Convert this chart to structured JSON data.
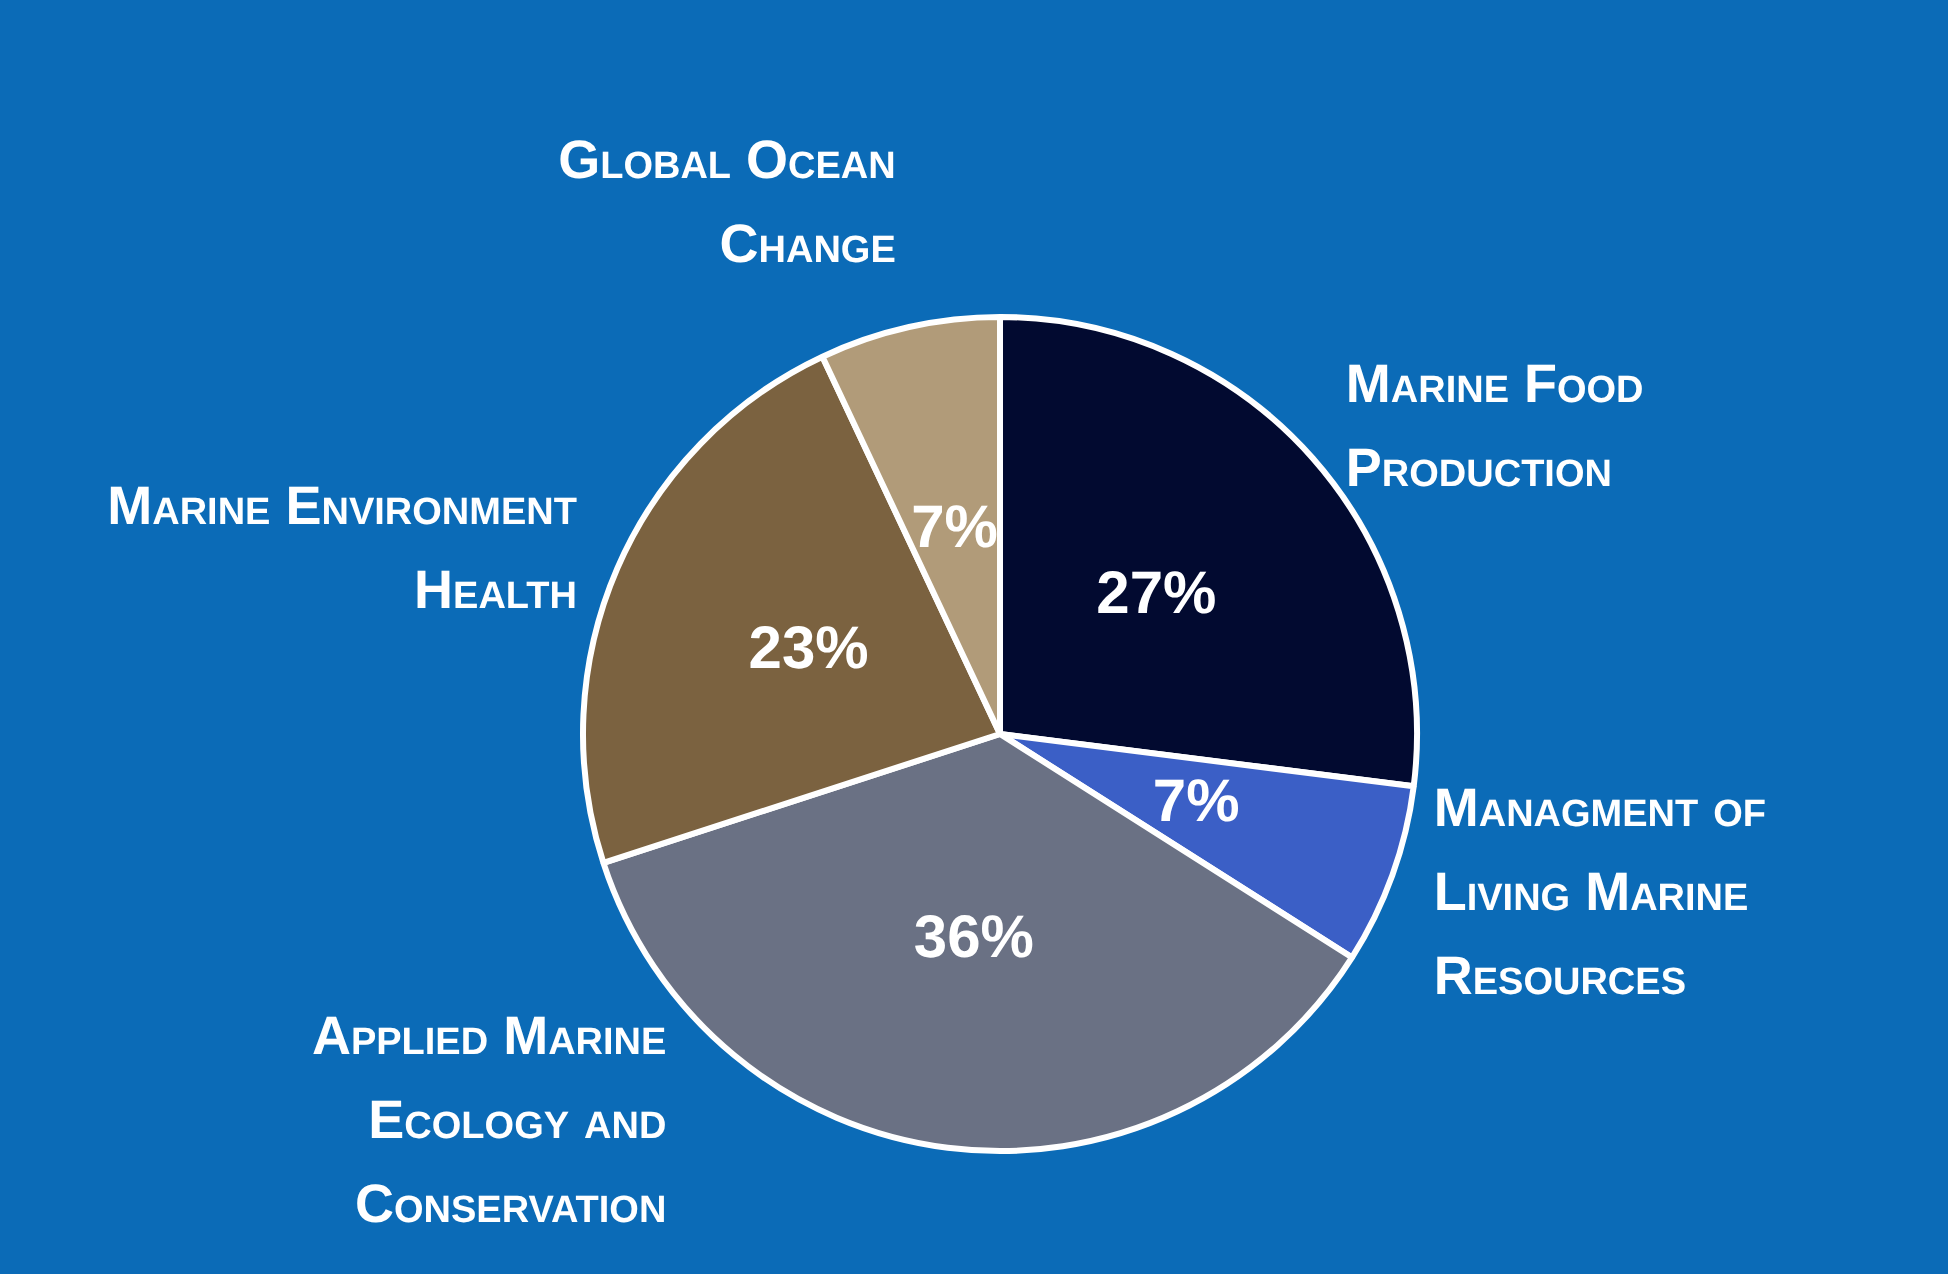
{
  "chart_data": {
    "type": "pie",
    "categories": [
      "Marine Food Production",
      "Managment of Living Marine Resources",
      "Applied Marine Ecology and Conservation",
      "Marine Environment Health",
      "Global Ocean Change"
    ],
    "values": [
      27,
      7,
      36,
      23,
      7
    ],
    "value_labels": [
      "27%",
      "7%",
      "36%",
      "23%",
      "7%"
    ],
    "colors": [
      "#020a30",
      "#3b5fc6",
      "#6a7184",
      "#7b6240",
      "#b19b79"
    ],
    "legend": false
  }
}
